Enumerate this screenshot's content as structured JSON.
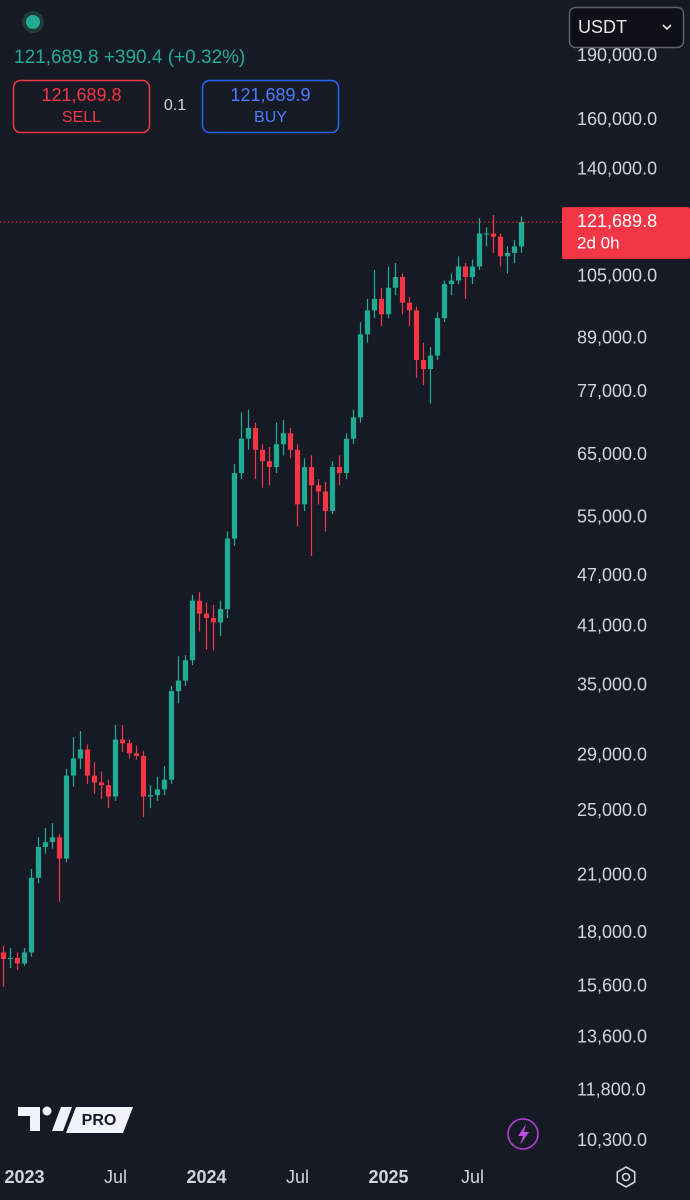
{
  "header": {
    "price": "121,689.8",
    "change": "+390.4 (+0.32%)"
  },
  "order": {
    "sell_price": "121,689.8",
    "sell_label": "SELL",
    "quantity": "0.1",
    "buy_price": "121,689.9",
    "buy_label": "BUY"
  },
  "currency": "USDT",
  "branding": {
    "badge": "PRO"
  },
  "chart_data": {
    "type": "candlestick",
    "log_scale": true,
    "grid": false,
    "up_color": "#22ab94",
    "down_color": "#f23645",
    "price_line_color": "#f23645",
    "last_price": {
      "value": 121689.8,
      "label": "121,689.8"
    },
    "countdown": "2d 0h",
    "ylim": [
      9790,
      221000
    ],
    "yticks": [
      {
        "value": 190000,
        "label": "190,000.0"
      },
      {
        "value": 160000,
        "label": "160,000.0"
      },
      {
        "value": 140000,
        "label": "140,000.0"
      },
      {
        "value": 105000,
        "label": "105,000.0"
      },
      {
        "value": 89000,
        "label": "89,000.0"
      },
      {
        "value": 77000,
        "label": "77,000.0"
      },
      {
        "value": 65000,
        "label": "65,000.0"
      },
      {
        "value": 55000,
        "label": "55,000.0"
      },
      {
        "value": 47000,
        "label": "47,000.0"
      },
      {
        "value": 41000,
        "label": "41,000.0"
      },
      {
        "value": 35000,
        "label": "35,000.0"
      },
      {
        "value": 29000,
        "label": "29,000.0"
      },
      {
        "value": 25000,
        "label": "25,000.0"
      },
      {
        "value": 21000,
        "label": "21,000.0"
      },
      {
        "value": 18000,
        "label": "18,000.0"
      },
      {
        "value": 15600,
        "label": "15,600.0"
      },
      {
        "value": 13600,
        "label": "13,600.0"
      },
      {
        "value": 11800,
        "label": "11,800.0"
      },
      {
        "value": 10300,
        "label": "10,300.0"
      }
    ],
    "categories": [
      null,
      null,
      null,
      "2023",
      null,
      null,
      null,
      null,
      null,
      null,
      null,
      null,
      null,
      null,
      null,
      null,
      "Jul",
      null,
      null,
      null,
      null,
      null,
      null,
      null,
      null,
      null,
      null,
      null,
      null,
      "2024",
      null,
      null,
      null,
      null,
      null,
      null,
      null,
      null,
      null,
      null,
      null,
      null,
      "Jul",
      null,
      null,
      null,
      null,
      null,
      null,
      null,
      null,
      null,
      null,
      null,
      null,
      "2025",
      null,
      null,
      null,
      null,
      null,
      null,
      null,
      null,
      null,
      null,
      null,
      "Jul",
      null,
      null,
      null,
      null,
      null,
      null,
      null
    ],
    "open": [
      17100,
      16800,
      16850,
      16600,
      17100,
      20900,
      22700,
      23000,
      23300,
      22000,
      27500,
      28800,
      29500,
      27500,
      27000,
      26800,
      26000,
      30300,
      30000,
      29200,
      29000,
      26000,
      26100,
      26500,
      27200,
      34500,
      35500,
      37500,
      44000,
      42500,
      42000,
      41500,
      43000,
      52000,
      62000,
      68000,
      70000,
      66000,
      64000,
      63000,
      67000,
      69000,
      66000,
      57000,
      63000,
      60000,
      59000,
      56000,
      63000,
      62000,
      68000,
      72000,
      90000,
      96000,
      99000,
      95000,
      102000,
      105000,
      98000,
      96000,
      84000,
      82000,
      85000,
      94000,
      103000,
      104000,
      108000,
      105000,
      108000,
      118000,
      118000,
      117000,
      111000,
      112000,
      114000
    ],
    "high": [
      17400,
      17300,
      17100,
      17300,
      21400,
      23300,
      23900,
      24200,
      23500,
      28000,
      30500,
      31000,
      29900,
      28500,
      27800,
      27200,
      31500,
      31500,
      30300,
      29800,
      29400,
      26800,
      27400,
      28200,
      35000,
      37900,
      38000,
      44700,
      45000,
      43800,
      43500,
      44000,
      53000,
      63500,
      73000,
      73500,
      71000,
      67000,
      66500,
      71000,
      71500,
      70000,
      67000,
      64500,
      65000,
      61000,
      60500,
      64000,
      65000,
      69000,
      73500,
      93000,
      99000,
      107000,
      102000,
      108000,
      109000,
      106000,
      99500,
      97000,
      88000,
      87000,
      95500,
      104000,
      106000,
      111000,
      109000,
      110000,
      123000,
      120000,
      124000,
      118000,
      114000,
      116000,
      123500
    ],
    "low": [
      15600,
      16400,
      16300,
      16500,
      16900,
      20600,
      22300,
      22600,
      19600,
      21800,
      26700,
      28000,
      26900,
      26200,
      25800,
      25200,
      25700,
      29300,
      28800,
      28700,
      24600,
      25200,
      25700,
      26100,
      26900,
      33400,
      35000,
      37000,
      40500,
      38600,
      38500,
      40000,
      42000,
      51000,
      61000,
      66000,
      61000,
      59600,
      60000,
      62000,
      65000,
      64500,
      53700,
      56000,
      49600,
      57000,
      53000,
      55500,
      60000,
      61000,
      67000,
      71000,
      88000,
      94000,
      92000,
      94000,
      100000,
      95000,
      92000,
      80000,
      78500,
      74700,
      84000,
      93000,
      100000,
      103000,
      99000,
      103000,
      107000,
      114000,
      112000,
      108000,
      106000,
      109000,
      112000
    ],
    "close": [
      16800,
      16850,
      16600,
      17100,
      20900,
      22700,
      23000,
      23300,
      22000,
      27500,
      28800,
      29500,
      27500,
      27000,
      26800,
      26000,
      30300,
      30000,
      29200,
      29000,
      26000,
      26100,
      26500,
      27200,
      34500,
      35500,
      37500,
      44000,
      42500,
      42000,
      41500,
      43000,
      52000,
      62000,
      68000,
      70000,
      66000,
      64000,
      63000,
      67000,
      69000,
      66000,
      57000,
      63000,
      60000,
      59000,
      56000,
      63000,
      62000,
      68000,
      72000,
      90000,
      96000,
      99000,
      95000,
      102000,
      105000,
      98000,
      96000,
      84000,
      82000,
      85000,
      94000,
      103000,
      104000,
      108000,
      105000,
      108000,
      118000,
      118000,
      117000,
      111000,
      112000,
      114000,
      121689.8
    ]
  }
}
